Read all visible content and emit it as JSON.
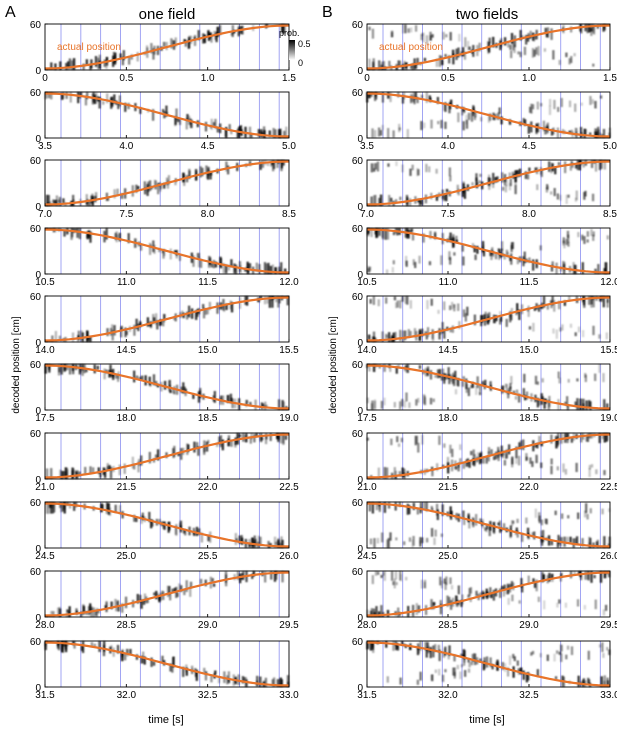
{
  "figure": {
    "panel_labels": [
      "A",
      "B"
    ],
    "xlabel": "time [s]",
    "ylabel": "decoded position [cm]",
    "colorbar": {
      "label": "prob.",
      "max_label": "0.5",
      "min_label": "0",
      "range": [
        0,
        0.5
      ],
      "colormap": "white-to-black"
    },
    "actual_position_label": "actual position",
    "colors": {
      "actual_position": "#e8742a",
      "theta_lines": "#8a8ef0",
      "probability": "#000000",
      "frame": "#000000"
    }
  },
  "chart_data": [
    {
      "type": "heatmap",
      "title": "one field",
      "panel": "A",
      "ylim": [
        0,
        60
      ],
      "yticks": [
        "0",
        "60"
      ],
      "overlay": "actual position",
      "rows": [
        {
          "xlim": [
            0,
            1.5
          ],
          "xticks": [
            "0",
            "0.5",
            "1.0",
            "1.5"
          ],
          "direction": "up",
          "actual_position": {
            "x": [
              0,
              0.375,
              0.75,
              1.125,
              1.5
            ],
            "y": [
              2,
              12,
              30,
              48,
              58
            ]
          }
        },
        {
          "xlim": [
            3.5,
            5.0
          ],
          "xticks": [
            "3.5",
            "4.0",
            "4.5",
            "5.0"
          ],
          "direction": "down",
          "actual_position": {
            "x": [
              3.5,
              3.875,
              4.25,
              4.625,
              5.0
            ],
            "y": [
              58,
              48,
              30,
              12,
              2
            ]
          }
        },
        {
          "xlim": [
            7.0,
            8.5
          ],
          "xticks": [
            "7.0",
            "7.5",
            "8.0",
            "8.5"
          ],
          "direction": "up",
          "actual_position": {
            "x": [
              7.0,
              7.375,
              7.75,
              8.125,
              8.5
            ],
            "y": [
              2,
              12,
              30,
              48,
              58
            ]
          }
        },
        {
          "xlim": [
            10.5,
            12.0
          ],
          "xticks": [
            "10.5",
            "11.0",
            "11.5",
            "12.0"
          ],
          "direction": "down",
          "actual_position": {
            "x": [
              10.5,
              10.875,
              11.25,
              11.625,
              12.0
            ],
            "y": [
              58,
              48,
              30,
              12,
              2
            ]
          }
        },
        {
          "xlim": [
            14.0,
            15.5
          ],
          "xticks": [
            "14.0",
            "14.5",
            "15.0",
            "15.5"
          ],
          "direction": "up",
          "actual_position": {
            "x": [
              14.0,
              14.375,
              14.75,
              15.125,
              15.5
            ],
            "y": [
              2,
              12,
              30,
              48,
              58
            ]
          }
        },
        {
          "xlim": [
            17.5,
            19.0
          ],
          "xticks": [
            "17.5",
            "18.0",
            "18.5",
            "19.0"
          ],
          "direction": "down",
          "actual_position": {
            "x": [
              17.5,
              17.875,
              18.25,
              18.625,
              19.0
            ],
            "y": [
              58,
              48,
              30,
              12,
              2
            ]
          }
        },
        {
          "xlim": [
            21.0,
            22.5
          ],
          "xticks": [
            "21.0",
            "21.5",
            "22.0",
            "22.5"
          ],
          "direction": "up",
          "actual_position": {
            "x": [
              21.0,
              21.375,
              21.75,
              22.125,
              22.5
            ],
            "y": [
              2,
              12,
              30,
              48,
              58
            ]
          }
        },
        {
          "xlim": [
            24.5,
            26.0
          ],
          "xticks": [
            "24.5",
            "25.0",
            "25.5",
            "26.0"
          ],
          "direction": "down",
          "actual_position": {
            "x": [
              24.5,
              24.875,
              25.25,
              25.625,
              26.0
            ],
            "y": [
              58,
              48,
              30,
              12,
              2
            ]
          }
        },
        {
          "xlim": [
            28.0,
            29.5
          ],
          "xticks": [
            "28.0",
            "28.5",
            "29.0",
            "29.5"
          ],
          "direction": "up",
          "actual_position": {
            "x": [
              28.0,
              28.375,
              28.75,
              29.125,
              29.5
            ],
            "y": [
              2,
              12,
              30,
              48,
              58
            ]
          }
        },
        {
          "xlim": [
            31.5,
            33.0
          ],
          "xticks": [
            "31.5",
            "32.0",
            "32.5",
            "33.0"
          ],
          "direction": "down",
          "actual_position": {
            "x": [
              31.5,
              31.875,
              32.25,
              32.625,
              33.0
            ],
            "y": [
              58,
              48,
              30,
              12,
              2
            ]
          }
        }
      ]
    },
    {
      "type": "heatmap",
      "title": "two fields",
      "panel": "B",
      "ylim": [
        0,
        60
      ],
      "yticks": [
        "0",
        "60"
      ],
      "overlay": "actual position",
      "rows": [
        {
          "xlim": [
            0,
            1.5
          ],
          "xticks": [
            "0",
            "0.5",
            "1.0",
            "1.5"
          ],
          "direction": "up",
          "actual_position": {
            "x": [
              0,
              0.375,
              0.75,
              1.125,
              1.5
            ],
            "y": [
              2,
              12,
              30,
              48,
              58
            ]
          }
        },
        {
          "xlim": [
            3.5,
            5.0
          ],
          "xticks": [
            "3.5",
            "4.0",
            "4.5",
            "5.0"
          ],
          "direction": "down",
          "actual_position": {
            "x": [
              3.5,
              3.875,
              4.25,
              4.625,
              5.0
            ],
            "y": [
              58,
              48,
              30,
              12,
              2
            ]
          }
        },
        {
          "xlim": [
            7.0,
            8.5
          ],
          "xticks": [
            "7.0",
            "7.5",
            "8.0",
            "8.5"
          ],
          "direction": "up",
          "actual_position": {
            "x": [
              7.0,
              7.375,
              7.75,
              8.125,
              8.5
            ],
            "y": [
              2,
              12,
              30,
              48,
              58
            ]
          }
        },
        {
          "xlim": [
            10.5,
            12.0
          ],
          "xticks": [
            "10.5",
            "11.0",
            "11.5",
            "12.0"
          ],
          "direction": "down",
          "actual_position": {
            "x": [
              10.5,
              10.875,
              11.25,
              11.625,
              12.0
            ],
            "y": [
              58,
              48,
              30,
              12,
              2
            ]
          }
        },
        {
          "xlim": [
            14.0,
            15.5
          ],
          "xticks": [
            "14.0",
            "14.5",
            "15.0",
            "15.5"
          ],
          "direction": "up",
          "actual_position": {
            "x": [
              14.0,
              14.375,
              14.75,
              15.125,
              15.5
            ],
            "y": [
              2,
              12,
              30,
              48,
              58
            ]
          }
        },
        {
          "xlim": [
            17.5,
            19.0
          ],
          "xticks": [
            "17.5",
            "18.0",
            "18.5",
            "19.0"
          ],
          "direction": "down",
          "actual_position": {
            "x": [
              17.5,
              17.875,
              18.25,
              18.625,
              19.0
            ],
            "y": [
              58,
              48,
              30,
              12,
              2
            ]
          }
        },
        {
          "xlim": [
            21.0,
            22.5
          ],
          "xticks": [
            "21.0",
            "21.5",
            "22.0",
            "22.5"
          ],
          "direction": "up",
          "actual_position": {
            "x": [
              21.0,
              21.375,
              21.75,
              22.125,
              22.5
            ],
            "y": [
              2,
              12,
              30,
              48,
              58
            ]
          }
        },
        {
          "xlim": [
            24.5,
            26.0
          ],
          "xticks": [
            "24.5",
            "25.0",
            "25.5",
            "26.0"
          ],
          "direction": "down",
          "actual_position": {
            "x": [
              24.5,
              24.875,
              25.25,
              25.625,
              26.0
            ],
            "y": [
              58,
              48,
              30,
              12,
              2
            ]
          }
        },
        {
          "xlim": [
            28.0,
            29.5
          ],
          "xticks": [
            "28.0",
            "28.5",
            "29.0",
            "29.5"
          ],
          "direction": "up",
          "actual_position": {
            "x": [
              28.0,
              28.375,
              28.75,
              29.125,
              29.5
            ],
            "y": [
              2,
              12,
              30,
              48,
              58
            ]
          }
        },
        {
          "xlim": [
            31.5,
            33.0
          ],
          "xticks": [
            "31.5",
            "32.0",
            "32.5",
            "33.0"
          ],
          "direction": "down",
          "actual_position": {
            "x": [
              31.5,
              31.875,
              32.25,
              32.625,
              33.0
            ],
            "y": [
              58,
              48,
              30,
              12,
              2
            ]
          }
        }
      ]
    }
  ]
}
